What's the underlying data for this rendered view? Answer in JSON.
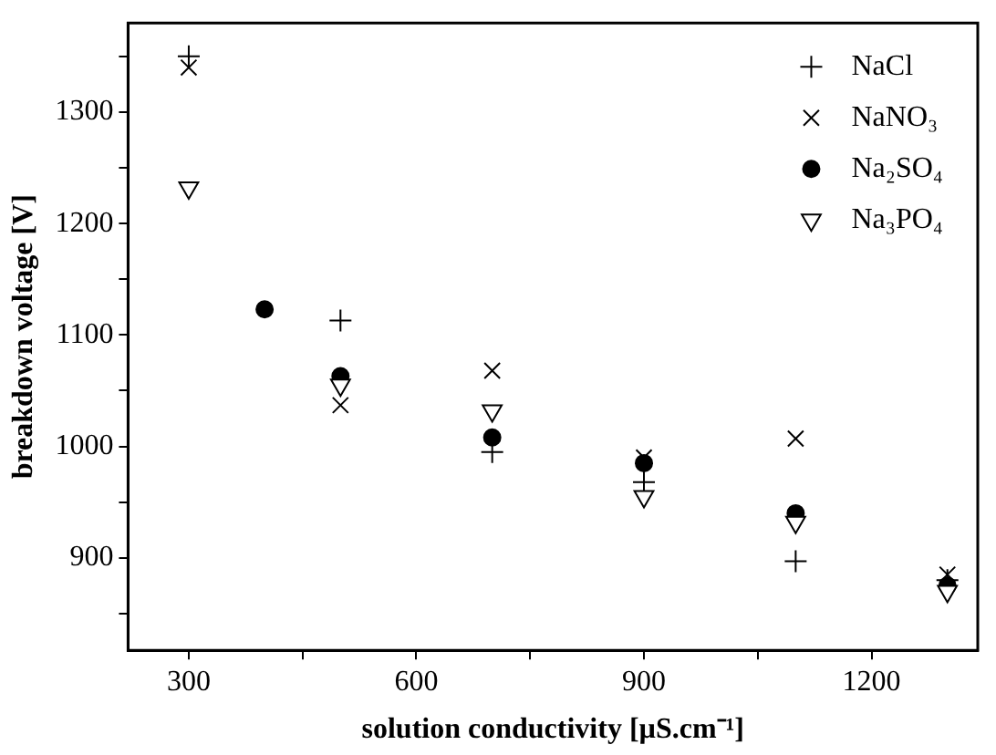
{
  "chart_data": {
    "type": "scatter",
    "xlabel": "solution conductivity [µS.cm⁻¹]",
    "ylabel": "breakdown voltage [V]",
    "xlim": [
      220,
      1340
    ],
    "xticks": [
      300,
      {
        "value": 450,
        "label": null
      },
      600,
      {
        "value": 750,
        "label": null
      },
      900,
      {
        "value": 1050,
        "label": null
      },
      1200
    ],
    "ylim": [
      817,
      1380
    ],
    "yticks": [
      {
        "value": 850,
        "label": null
      },
      900,
      {
        "value": 950,
        "label": null
      },
      1000,
      {
        "value": 1050,
        "label": null
      },
      1100,
      {
        "value": 1150,
        "label": null
      },
      1200,
      {
        "value": 1250,
        "label": null
      },
      1300,
      {
        "value": 1350,
        "label": null
      }
    ],
    "grid": false,
    "legend": "top right",
    "series": [
      {
        "name": "NaCl",
        "color": "#000000",
        "marker": "cross",
        "x": [
          300,
          500,
          700,
          900,
          1100,
          1300
        ],
        "values": [
          1350,
          1113,
          995,
          968,
          897,
          880
        ]
      },
      {
        "name": "NaNO₃",
        "color": "#000000",
        "marker": "x",
        "x": [
          300,
          500,
          700,
          900,
          1100,
          1300
        ],
        "values": [
          1340,
          1037,
          1068,
          990,
          1007,
          885
        ]
      },
      {
        "name": "Na₂SO₄",
        "color": "#000000",
        "marker": "circle",
        "x": [
          400,
          500,
          700,
          900,
          1100,
          1300
        ],
        "values": [
          1123,
          1063,
          1008,
          985,
          940,
          875
        ]
      },
      {
        "name": "Na₃PO₄",
        "color": "#000000",
        "marker": "triangle-down",
        "x": [
          300,
          500,
          700,
          900,
          1100,
          1300
        ],
        "values": [
          1232,
          1055,
          1032,
          955,
          932,
          870
        ]
      }
    ]
  }
}
